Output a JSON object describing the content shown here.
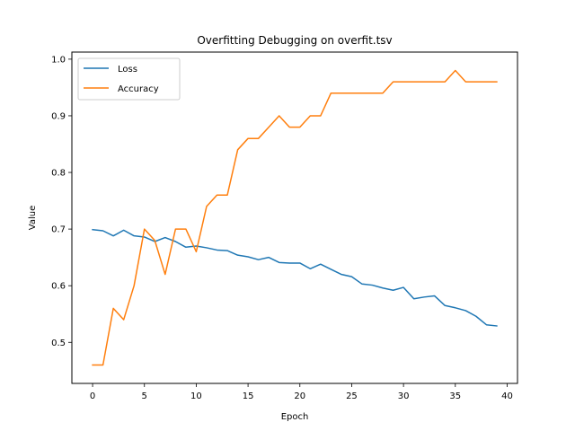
{
  "chart_data": {
    "type": "line",
    "title": "Overfitting Debugging on overfit.tsv",
    "xlabel": "Epoch",
    "ylabel": "Value",
    "xlim": [
      -2,
      41
    ],
    "ylim": [
      0.4275,
      1.0125
    ],
    "xticks": [
      0,
      5,
      10,
      15,
      20,
      25,
      30,
      35,
      40
    ],
    "yticks": [
      0.5,
      0.6,
      0.7,
      0.8,
      0.9,
      1.0
    ],
    "ytick_labels": [
      "0.5",
      "0.6",
      "0.7",
      "0.8",
      "0.9",
      "1.0"
    ],
    "grid": false,
    "legend": "top-left",
    "x": [
      0,
      1,
      2,
      3,
      4,
      5,
      6,
      7,
      8,
      9,
      10,
      11,
      12,
      13,
      14,
      15,
      16,
      17,
      18,
      19,
      20,
      21,
      22,
      23,
      24,
      25,
      26,
      27,
      28,
      29,
      30,
      31,
      32,
      33,
      34,
      35,
      36,
      37,
      38,
      39
    ],
    "series": [
      {
        "name": "Loss",
        "color": "#1f77b4",
        "values": [
          0.699,
          0.697,
          0.688,
          0.698,
          0.688,
          0.686,
          0.678,
          0.685,
          0.678,
          0.668,
          0.67,
          0.667,
          0.663,
          0.662,
          0.654,
          0.651,
          0.646,
          0.65,
          0.641,
          0.64,
          0.64,
          0.63,
          0.638,
          0.629,
          0.62,
          0.616,
          0.603,
          0.601,
          0.596,
          0.592,
          0.597,
          0.577,
          0.58,
          0.582,
          0.565,
          0.561,
          0.556,
          0.546,
          0.531,
          0.529
        ]
      },
      {
        "name": "Accuracy",
        "color": "#ff7f0e",
        "values": [
          0.46,
          0.46,
          0.56,
          0.54,
          0.6,
          0.7,
          0.68,
          0.62,
          0.7,
          0.7,
          0.66,
          0.74,
          0.76,
          0.76,
          0.84,
          0.86,
          0.86,
          0.88,
          0.9,
          0.88,
          0.88,
          0.9,
          0.9,
          0.94,
          0.94,
          0.94,
          0.94,
          0.94,
          0.94,
          0.96,
          0.96,
          0.96,
          0.96,
          0.96,
          0.96,
          0.98,
          0.96,
          0.96,
          0.96,
          0.96
        ]
      }
    ]
  }
}
